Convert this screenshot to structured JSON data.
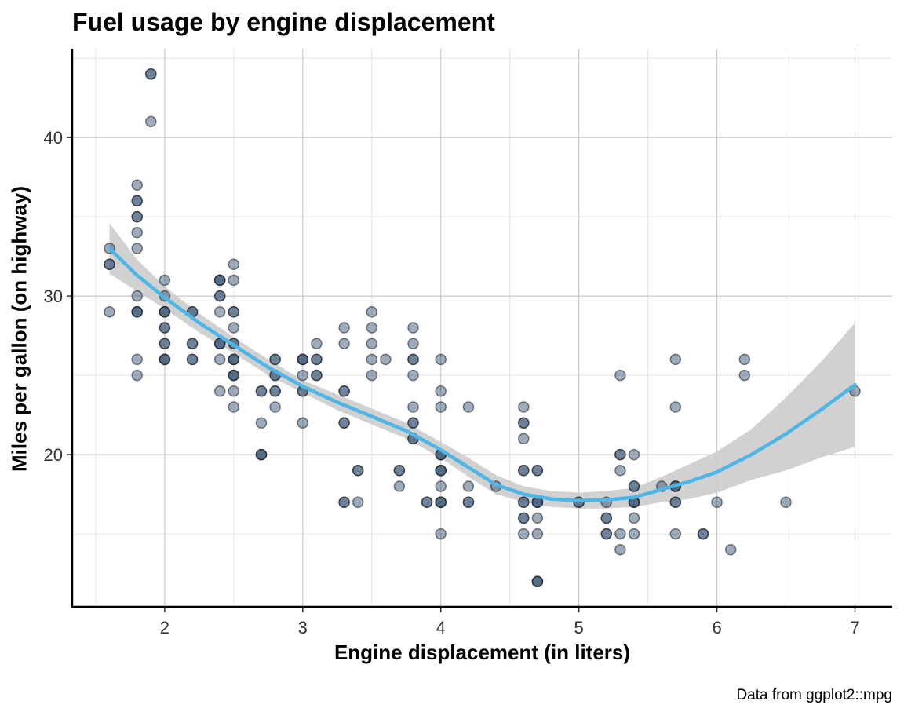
{
  "chart_data": {
    "type": "scatter",
    "title": "Fuel usage by engine displacement",
    "xlabel": "Engine displacement (in liters)",
    "ylabel": "Miles per gallon (on highway)",
    "caption": "Data from ggplot2::mpg",
    "xlim": [
      1.33,
      7.27
    ],
    "ylim": [
      10.4,
      45.6
    ],
    "xticks": [
      2,
      3,
      4,
      5,
      6,
      7
    ],
    "yticks": [
      20,
      30,
      40
    ],
    "grid": true,
    "point_color": "#3b5a7a",
    "smooth_color": "#4db6e6",
    "band_color": "#cccccc",
    "points": [
      [
        1.6,
        33
      ],
      [
        1.6,
        32
      ],
      [
        1.6,
        32
      ],
      [
        1.6,
        29
      ],
      [
        1.8,
        37
      ],
      [
        1.8,
        36
      ],
      [
        1.8,
        36
      ],
      [
        1.8,
        35
      ],
      [
        1.8,
        35
      ],
      [
        1.8,
        34
      ],
      [
        1.8,
        33
      ],
      [
        1.8,
        30
      ],
      [
        1.8,
        29
      ],
      [
        1.8,
        29
      ],
      [
        1.8,
        29
      ],
      [
        1.8,
        26
      ],
      [
        1.8,
        25
      ],
      [
        1.9,
        44
      ],
      [
        1.9,
        44
      ],
      [
        1.9,
        41
      ],
      [
        2.0,
        31
      ],
      [
        2.0,
        30
      ],
      [
        2.0,
        29
      ],
      [
        2.0,
        29
      ],
      [
        2.0,
        29
      ],
      [
        2.0,
        28
      ],
      [
        2.0,
        28
      ],
      [
        2.0,
        27
      ],
      [
        2.0,
        27
      ],
      [
        2.0,
        26
      ],
      [
        2.0,
        26
      ],
      [
        2.0,
        26
      ],
      [
        2.2,
        29
      ],
      [
        2.2,
        29
      ],
      [
        2.2,
        27
      ],
      [
        2.2,
        27
      ],
      [
        2.2,
        26
      ],
      [
        2.2,
        26
      ],
      [
        2.4,
        31
      ],
      [
        2.4,
        31
      ],
      [
        2.4,
        31
      ],
      [
        2.4,
        30
      ],
      [
        2.4,
        30
      ],
      [
        2.4,
        29
      ],
      [
        2.4,
        27
      ],
      [
        2.4,
        27
      ],
      [
        2.4,
        27
      ],
      [
        2.4,
        26
      ],
      [
        2.4,
        24
      ],
      [
        2.5,
        32
      ],
      [
        2.5,
        31
      ],
      [
        2.5,
        29
      ],
      [
        2.5,
        29
      ],
      [
        2.5,
        28
      ],
      [
        2.5,
        27
      ],
      [
        2.5,
        27
      ],
      [
        2.5,
        26
      ],
      [
        2.5,
        26
      ],
      [
        2.5,
        26
      ],
      [
        2.5,
        25
      ],
      [
        2.5,
        25
      ],
      [
        2.5,
        25
      ],
      [
        2.5,
        24
      ],
      [
        2.5,
        23
      ],
      [
        2.7,
        24
      ],
      [
        2.7,
        24
      ],
      [
        2.7,
        22
      ],
      [
        2.7,
        20
      ],
      [
        2.7,
        20
      ],
      [
        2.7,
        20
      ],
      [
        2.8,
        26
      ],
      [
        2.8,
        26
      ],
      [
        2.8,
        25
      ],
      [
        2.8,
        25
      ],
      [
        2.8,
        24
      ],
      [
        2.8,
        24
      ],
      [
        2.8,
        23
      ],
      [
        3.0,
        26
      ],
      [
        3.0,
        26
      ],
      [
        3.0,
        26
      ],
      [
        3.0,
        25
      ],
      [
        3.0,
        24
      ],
      [
        3.0,
        24
      ],
      [
        3.0,
        22
      ],
      [
        3.1,
        27
      ],
      [
        3.1,
        26
      ],
      [
        3.1,
        26
      ],
      [
        3.1,
        25
      ],
      [
        3.1,
        25
      ],
      [
        3.3,
        28
      ],
      [
        3.3,
        27
      ],
      [
        3.3,
        24
      ],
      [
        3.3,
        24
      ],
      [
        3.3,
        22
      ],
      [
        3.3,
        22
      ],
      [
        3.3,
        17
      ],
      [
        3.3,
        17
      ],
      [
        3.4,
        19
      ],
      [
        3.4,
        19
      ],
      [
        3.4,
        17
      ],
      [
        3.5,
        29
      ],
      [
        3.5,
        28
      ],
      [
        3.5,
        27
      ],
      [
        3.5,
        26
      ],
      [
        3.5,
        25
      ],
      [
        3.6,
        26
      ],
      [
        3.7,
        19
      ],
      [
        3.7,
        19
      ],
      [
        3.7,
        18
      ],
      [
        3.8,
        28
      ],
      [
        3.8,
        27
      ],
      [
        3.8,
        26
      ],
      [
        3.8,
        26
      ],
      [
        3.8,
        25
      ],
      [
        3.8,
        23
      ],
      [
        3.8,
        22
      ],
      [
        3.8,
        22
      ],
      [
        3.8,
        21
      ],
      [
        3.8,
        21
      ],
      [
        3.9,
        17
      ],
      [
        3.9,
        17
      ],
      [
        4.0,
        26
      ],
      [
        4.0,
        24
      ],
      [
        4.0,
        23
      ],
      [
        4.0,
        20
      ],
      [
        4.0,
        20
      ],
      [
        4.0,
        20
      ],
      [
        4.0,
        19
      ],
      [
        4.0,
        19
      ],
      [
        4.0,
        19
      ],
      [
        4.0,
        18
      ],
      [
        4.0,
        17
      ],
      [
        4.0,
        17
      ],
      [
        4.0,
        17
      ],
      [
        4.0,
        15
      ],
      [
        4.2,
        23
      ],
      [
        4.2,
        18
      ],
      [
        4.2,
        17
      ],
      [
        4.2,
        17
      ],
      [
        4.4,
        18
      ],
      [
        4.6,
        23
      ],
      [
        4.6,
        22
      ],
      [
        4.6,
        22
      ],
      [
        4.6,
        21
      ],
      [
        4.6,
        19
      ],
      [
        4.6,
        19
      ],
      [
        4.6,
        17
      ],
      [
        4.6,
        17
      ],
      [
        4.6,
        16
      ],
      [
        4.6,
        16
      ],
      [
        4.6,
        15
      ],
      [
        4.7,
        19
      ],
      [
        4.7,
        19
      ],
      [
        4.7,
        17
      ],
      [
        4.7,
        17
      ],
      [
        4.7,
        17
      ],
      [
        4.7,
        16
      ],
      [
        4.7,
        15
      ],
      [
        4.7,
        12
      ],
      [
        4.7,
        12
      ],
      [
        4.7,
        12
      ],
      [
        5.0,
        17
      ],
      [
        5.0,
        17
      ],
      [
        5.2,
        17
      ],
      [
        5.2,
        16
      ],
      [
        5.2,
        16
      ],
      [
        5.2,
        15
      ],
      [
        5.2,
        15
      ],
      [
        5.3,
        25
      ],
      [
        5.3,
        20
      ],
      [
        5.3,
        20
      ],
      [
        5.3,
        19
      ],
      [
        5.3,
        15
      ],
      [
        5.3,
        14
      ],
      [
        5.4,
        20
      ],
      [
        5.4,
        18
      ],
      [
        5.4,
        18
      ],
      [
        5.4,
        17
      ],
      [
        5.4,
        17
      ],
      [
        5.4,
        17
      ],
      [
        5.4,
        16
      ],
      [
        5.4,
        15
      ],
      [
        5.6,
        18
      ],
      [
        5.7,
        26
      ],
      [
        5.7,
        23
      ],
      [
        5.7,
        18
      ],
      [
        5.7,
        18
      ],
      [
        5.7,
        18
      ],
      [
        5.7,
        17
      ],
      [
        5.7,
        17
      ],
      [
        5.7,
        15
      ],
      [
        5.9,
        15
      ],
      [
        5.9,
        15
      ],
      [
        6.0,
        17
      ],
      [
        6.1,
        14
      ],
      [
        6.2,
        26
      ],
      [
        6.2,
        25
      ],
      [
        6.5,
        17
      ],
      [
        7.0,
        24
      ]
    ],
    "smooth": {
      "x": [
        1.6,
        1.8,
        2.0,
        2.25,
        2.5,
        2.75,
        3.0,
        3.25,
        3.5,
        3.75,
        4.0,
        4.2,
        4.4,
        4.6,
        4.8,
        5.0,
        5.2,
        5.4,
        5.6,
        5.8,
        6.0,
        6.25,
        6.5,
        6.75,
        7.0
      ],
      "y": [
        33.0,
        31.3,
        29.9,
        28.3,
        26.9,
        25.5,
        24.3,
        23.3,
        22.4,
        21.5,
        20.3,
        19.2,
        18.1,
        17.5,
        17.2,
        17.1,
        17.15,
        17.3,
        17.8,
        18.3,
        18.9,
        20.0,
        21.3,
        22.8,
        24.4
      ],
      "lower": [
        31.4,
        30.3,
        29.2,
        27.7,
        26.4,
        25.0,
        23.9,
        22.8,
        21.9,
        21.0,
        19.8,
        18.6,
        17.5,
        17.0,
        16.7,
        16.6,
        16.6,
        16.7,
        17.0,
        17.2,
        17.6,
        18.4,
        19.0,
        19.8,
        20.5
      ],
      "upper": [
        34.6,
        32.3,
        30.6,
        28.9,
        27.4,
        26.0,
        24.7,
        23.8,
        22.9,
        22.0,
        20.8,
        19.8,
        18.7,
        18.0,
        17.7,
        17.6,
        17.7,
        17.9,
        18.6,
        19.4,
        20.2,
        21.6,
        23.6,
        25.8,
        28.3
      ]
    }
  }
}
